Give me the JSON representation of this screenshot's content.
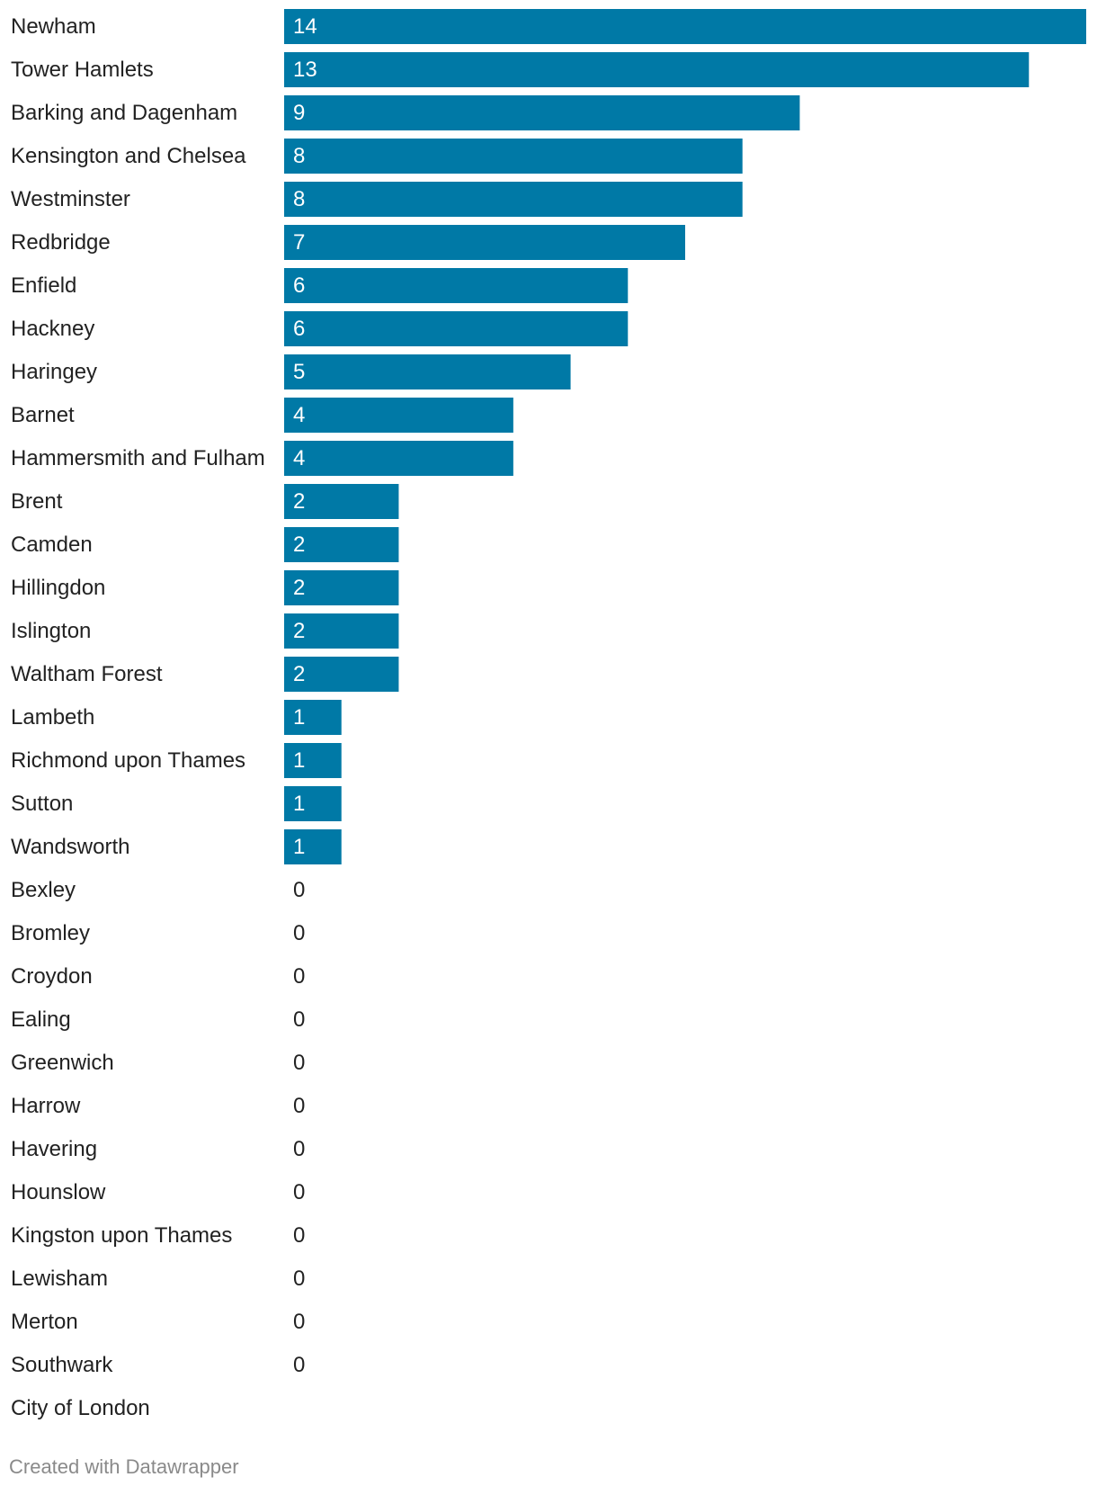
{
  "chart_data": {
    "type": "bar",
    "orientation": "horizontal",
    "title": "",
    "xlabel": "",
    "ylabel": "",
    "xlim": [
      0,
      14
    ],
    "grid": false,
    "bar_color": "#0079a6",
    "categories": [
      "Newham",
      "Tower Hamlets",
      "Barking and Dagenham",
      "Kensington and Chelsea",
      "Westminster",
      "Redbridge",
      "Enfield",
      "Hackney",
      "Haringey",
      "Barnet",
      "Hammersmith and Fulham",
      "Brent",
      "Camden",
      "Hillingdon",
      "Islington",
      "Waltham Forest",
      "Lambeth",
      "Richmond upon Thames",
      "Sutton",
      "Wandsworth",
      "Bexley",
      "Bromley",
      "Croydon",
      "Ealing",
      "Greenwich",
      "Harrow",
      "Havering",
      "Hounslow",
      "Kingston upon Thames",
      "Lewisham",
      "Merton",
      "Southwark",
      "City of London"
    ],
    "values": [
      14,
      13,
      9,
      8,
      8,
      7,
      6,
      6,
      5,
      4,
      4,
      2,
      2,
      2,
      2,
      2,
      1,
      1,
      1,
      1,
      0,
      0,
      0,
      0,
      0,
      0,
      0,
      0,
      0,
      0,
      0,
      0,
      null
    ]
  },
  "footer": {
    "credit": "Created with Datawrapper"
  }
}
